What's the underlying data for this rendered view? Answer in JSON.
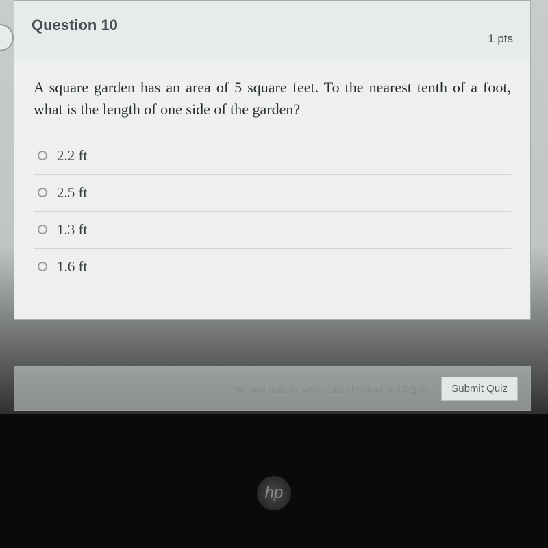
{
  "question": {
    "number": "Question 10",
    "points": "1 pts",
    "text": "A square garden has an area of 5 square feet. To the nearest tenth of a foot, what is the length of one side of the garden?",
    "options": [
      {
        "label": "2.2 ft"
      },
      {
        "label": "2.5 ft"
      },
      {
        "label": "1.3 ft"
      },
      {
        "label": "1.6 ft"
      }
    ]
  },
  "footer": {
    "save_status": "No new data to save. Last checked at 4:02pm",
    "submit_label": "Submit Quiz"
  },
  "logo": {
    "text": "hp"
  },
  "colors": {
    "header_bg": "#e8ebec",
    "body_bg": "#eef0f0",
    "border": "#a8acae",
    "text_dark": "#2a2e30"
  }
}
